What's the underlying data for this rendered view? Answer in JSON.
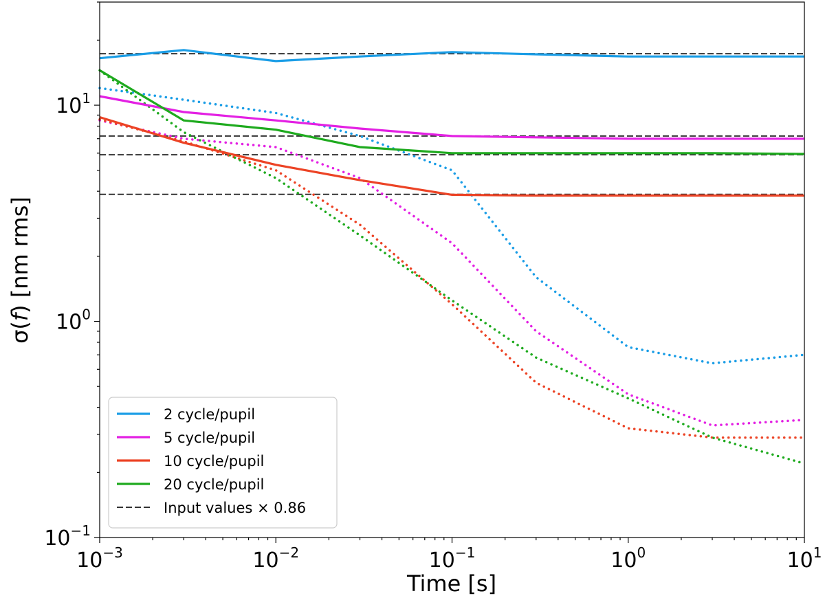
{
  "chart_data": {
    "type": "line",
    "title": "",
    "xlabel": "Time [s]",
    "ylabel_prefix": "σ(",
    "ylabel_var": "f",
    "ylabel_suffix": ") [nm rms]",
    "xscale": "log",
    "yscale": "log",
    "xlim": [
      0.001,
      10
    ],
    "ylim": [
      0.1,
      30
    ],
    "x_ticks": [
      {
        "base": "10",
        "exp": "−3",
        "value": 0.001
      },
      {
        "base": "10",
        "exp": "−2",
        "value": 0.01
      },
      {
        "base": "10",
        "exp": "−1",
        "value": 0.1
      },
      {
        "base": "10",
        "exp": "0",
        "value": 1
      },
      {
        "base": "10",
        "exp": "1",
        "value": 10
      }
    ],
    "y_ticks": [
      {
        "base": "10",
        "exp": "−1",
        "value": 0.1
      },
      {
        "base": "10",
        "exp": "0",
        "value": 1
      },
      {
        "base": "10",
        "exp": "1",
        "value": 10
      }
    ],
    "x": [
      0.001,
      0.003,
      0.01,
      0.03,
      0.1,
      0.3,
      1,
      3,
      10
    ],
    "series": [
      {
        "name": "2 cycle/pupil",
        "color": "#1a9de6",
        "style": "solid",
        "values": [
          16.5,
          18.0,
          16.0,
          16.8,
          17.6,
          17.2,
          16.8,
          16.8,
          16.8
        ]
      },
      {
        "name": "5 cycle/pupil",
        "color": "#e320e3",
        "style": "solid",
        "values": [
          11.0,
          9.3,
          8.5,
          7.8,
          7.2,
          7.1,
          7.0,
          7.0,
          7.0
        ]
      },
      {
        "name": "10 cycle/pupil",
        "color": "#ec4325",
        "style": "solid",
        "values": [
          8.8,
          6.7,
          5.3,
          4.5,
          3.85,
          3.82,
          3.82,
          3.82,
          3.82
        ]
      },
      {
        "name": "20 cycle/pupil",
        "color": "#1eaa1e",
        "style": "solid",
        "values": [
          14.5,
          8.5,
          7.7,
          6.4,
          6.0,
          6.0,
          6.0,
          6.0,
          5.95
        ]
      },
      {
        "name": "2 cycle/pupil (dotted)",
        "color": "#1a9de6",
        "style": "dotted",
        "in_legend": false,
        "values": [
          12.0,
          10.6,
          9.2,
          7.2,
          5.0,
          1.6,
          0.76,
          0.64,
          0.7
        ]
      },
      {
        "name": "5 cycle/pupil (dotted)",
        "color": "#e320e3",
        "style": "dotted",
        "in_legend": false,
        "values": [
          8.5,
          7.0,
          6.4,
          4.6,
          2.3,
          0.9,
          0.46,
          0.33,
          0.35
        ]
      },
      {
        "name": "10 cycle/pupil (dotted)",
        "color": "#ec4325",
        "style": "dotted",
        "in_legend": false,
        "values": [
          8.6,
          6.8,
          5.0,
          2.8,
          1.2,
          0.52,
          0.32,
          0.29,
          0.29
        ]
      },
      {
        "name": "20 cycle/pupil (dotted)",
        "color": "#1eaa1e",
        "style": "dotted",
        "in_legend": false,
        "values": [
          14.5,
          7.5,
          4.6,
          2.5,
          1.25,
          0.68,
          0.44,
          0.29,
          0.22
        ]
      }
    ],
    "reference_lines": {
      "name": "Input values × 0.86",
      "color": "#333333",
      "style": "dashed",
      "values": [
        17.3,
        7.2,
        5.9,
        3.87
      ]
    },
    "legend": {
      "position": "lower-left",
      "entries": [
        {
          "label": "2 cycle/pupil",
          "color": "#1a9de6",
          "style": "solid"
        },
        {
          "label": "5 cycle/pupil",
          "color": "#e320e3",
          "style": "solid"
        },
        {
          "label": "10 cycle/pupil",
          "color": "#ec4325",
          "style": "solid"
        },
        {
          "label": "20 cycle/pupil",
          "color": "#1eaa1e",
          "style": "solid"
        },
        {
          "label": "Input values × 0.86",
          "color": "#333333",
          "style": "dashed"
        }
      ]
    }
  }
}
